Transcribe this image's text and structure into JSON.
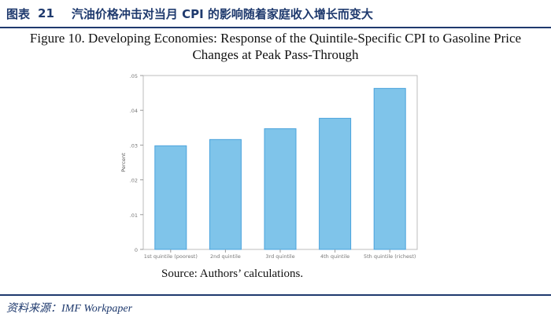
{
  "header": {
    "label": "图表",
    "number": "21",
    "text": "汽油价格冲击对当月 CPI 的影响随着家庭收入增长而变大"
  },
  "figure_title": {
    "line1": "Figure 10. Developing Economies: Response of the Quintile-Specific CPI to Gasoline Price",
    "line2": "Changes at Peak Pass-Through"
  },
  "source_note": "Source: Authors’ calculations.",
  "footer": "资料来源：IMF Workpaper",
  "colors": {
    "bar_fill": "#7fc4ea",
    "bar_stroke": "#4aa3dc",
    "header": "#1f3a6e"
  },
  "chart_data": {
    "type": "bar",
    "categories": [
      "1st quintile (poorest)",
      "2nd quintile",
      "3rd quintile",
      "4th quintile",
      "5th quintile (richest)"
    ],
    "values": [
      0.0298,
      0.0316,
      0.0347,
      0.0377,
      0.0463
    ],
    "ylabel": "Percent",
    "xlabel": "",
    "ylim": [
      0,
      0.05
    ],
    "yticks": [
      0,
      0.01,
      0.02,
      0.03,
      0.04,
      0.05
    ],
    "ytick_labels": [
      "0",
      ".01",
      ".02",
      ".03",
      ".04",
      ".05"
    ],
    "grid": false
  }
}
